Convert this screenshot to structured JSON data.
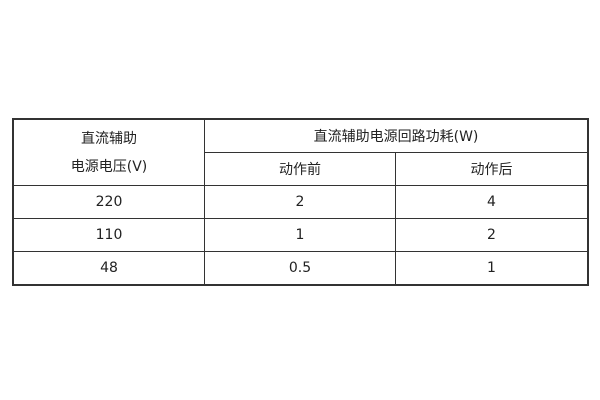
{
  "table": {
    "voltage_header": [
      "直流辅助",
      "电源电压(V)"
    ],
    "power_header": "直流辅助电源回路功耗(W)",
    "sub_headers": [
      "动作前",
      "动作后"
    ],
    "rows": [
      [
        "220",
        "2",
        "4"
      ],
      [
        "110",
        "1",
        "2"
      ],
      [
        "48",
        "0.5",
        "1"
      ]
    ]
  }
}
